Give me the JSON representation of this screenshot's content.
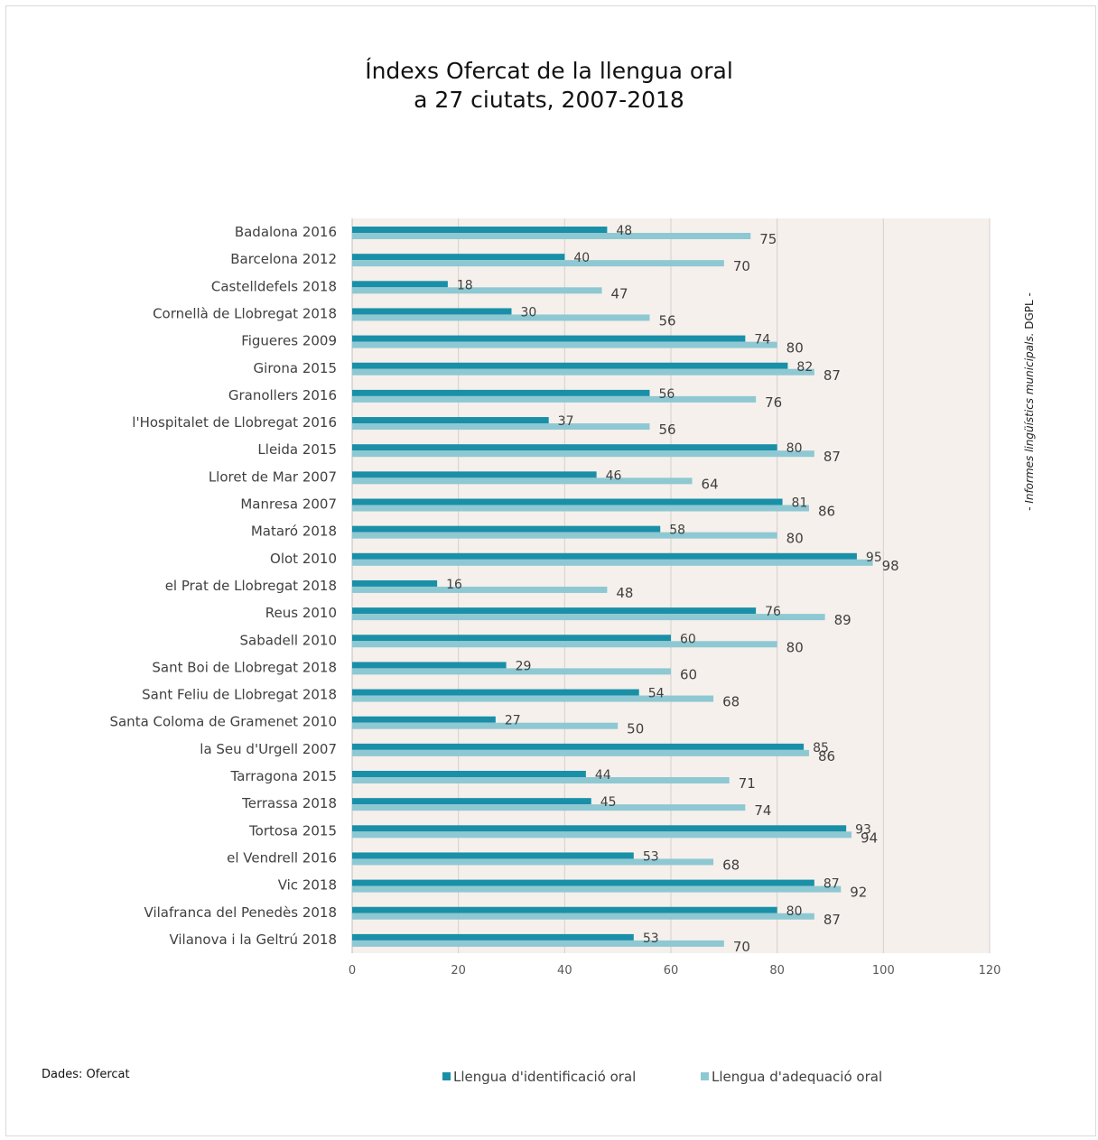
{
  "title_line1": "Índexs Ofercat de la llengua oral",
  "title_line2": "a 27 ciutats, 2007-2018",
  "side_note_italic": "- Informes lingüístics municipals.",
  "side_note_rest": " DGPL -",
  "source": "Dades: Ofercat",
  "colors": {
    "series1": "#1a8fa8",
    "series2": "#8ec8d3",
    "plot_bg": "#f5f0eb",
    "grid": "#d4d0cc"
  },
  "legend": [
    {
      "label": "Llengua d'identificació oral"
    },
    {
      "label": "Llengua d'adequació oral"
    }
  ],
  "chart_data": {
    "type": "bar",
    "orientation": "horizontal",
    "title": "Índexs Ofercat de la llengua oral a 27 ciutats, 2007-2018",
    "categories": [
      "Badalona 2016",
      "Barcelona 2012",
      "Castelldefels 2018",
      "Cornellà de Llobregat 2018",
      "Figueres 2009",
      "Girona 2015",
      "Granollers 2016",
      "l'Hospitalet de Llobregat 2016",
      "Lleida 2015",
      "Lloret de Mar 2007",
      "Manresa 2007",
      "Mataró 2018",
      "Olot 2010",
      "el Prat de Llobregat 2018",
      "Reus 2010",
      "Sabadell 2010",
      "Sant Boi de Llobregat 2018",
      "Sant Feliu de Llobregat 2018",
      "Santa Coloma de Gramenet 2010",
      "la Seu d'Urgell 2007",
      "Tarragona 2015",
      "Terrassa 2018",
      "Tortosa 2015",
      "el Vendrell 2016",
      "Vic 2018",
      "Vilafranca del Penedès 2018",
      "Vilanova i la Geltrú 2018"
    ],
    "series": [
      {
        "name": "Llengua d'identificació oral",
        "values": [
          48,
          40,
          18,
          30,
          74,
          82,
          56,
          37,
          80,
          46,
          81,
          58,
          95,
          16,
          76,
          60,
          29,
          54,
          27,
          85,
          44,
          45,
          93,
          53,
          87,
          80,
          53
        ]
      },
      {
        "name": "Llengua d'adequació oral",
        "values": [
          75,
          70,
          47,
          56,
          80,
          87,
          76,
          56,
          87,
          64,
          86,
          80,
          98,
          48,
          89,
          80,
          60,
          68,
          50,
          86,
          71,
          74,
          94,
          68,
          92,
          87,
          70
        ]
      }
    ],
    "xlim": [
      0,
      120
    ],
    "xticks": [
      0,
      20,
      40,
      60,
      80,
      100,
      120
    ],
    "grid": true,
    "legend_position": "bottom"
  }
}
